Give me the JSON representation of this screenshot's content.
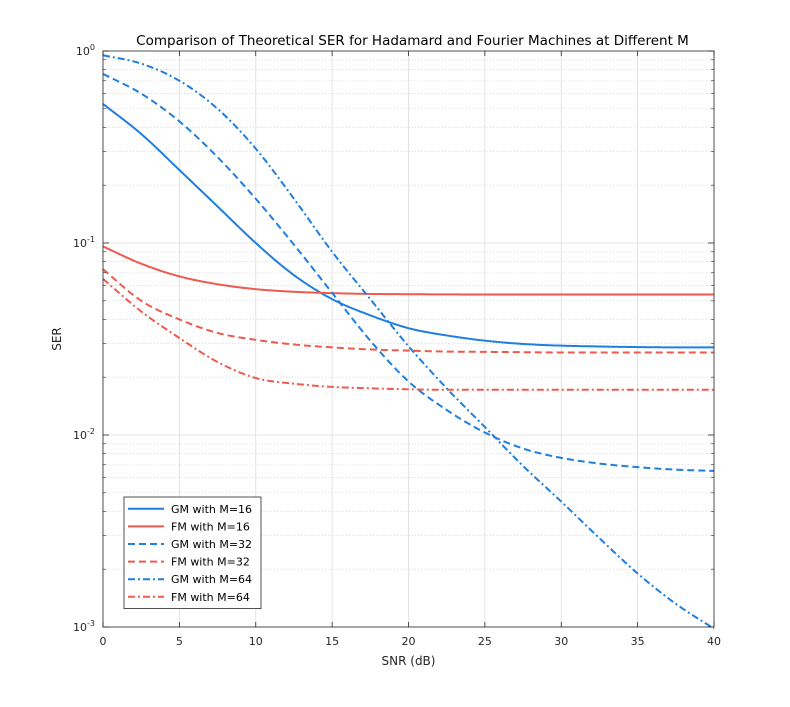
{
  "chart_data": {
    "type": "line",
    "title": "Comparison of Theoretical SER for Hadamard and Fourier Machines at Different M",
    "xlabel": "SNR (dB)",
    "ylabel": "SER",
    "xlim": [
      0,
      40
    ],
    "ylim": [
      0.001,
      1
    ],
    "y_scale": "log",
    "x_ticks": [
      0,
      5,
      10,
      15,
      20,
      25,
      30,
      35,
      40
    ],
    "y_ticks": [
      {
        "value": 0.001,
        "base": "10",
        "exp": "-3"
      },
      {
        "value": 0.01,
        "base": "10",
        "exp": "-2"
      },
      {
        "value": 0.1,
        "base": "10",
        "exp": "-1"
      },
      {
        "value": 1,
        "base": "10",
        "exp": "0"
      }
    ],
    "grid": true,
    "legend_position": "bottom-left",
    "colors": {
      "gm": "#1f7fe0",
      "fm": "#ee5a4e"
    },
    "series": [
      {
        "name": "GM with M=16",
        "color": "#1f7fe0",
        "dash": "solid",
        "x": [
          0,
          2.5,
          5,
          7.5,
          10,
          12.5,
          15,
          17.5,
          20,
          22.5,
          25,
          27.5,
          30,
          32.5,
          35,
          37.5,
          40
        ],
        "y": [
          0.53,
          0.37,
          0.24,
          0.155,
          0.1,
          0.068,
          0.051,
          0.042,
          0.036,
          0.033,
          0.031,
          0.0298,
          0.0292,
          0.0289,
          0.0287,
          0.0286,
          0.0286
        ]
      },
      {
        "name": "FM with M=16",
        "color": "#ee5a4e",
        "dash": "solid",
        "x": [
          0,
          2.5,
          5,
          7.5,
          10,
          12.5,
          15,
          17.5,
          20,
          22.5,
          25,
          27.5,
          30,
          32.5,
          35,
          37.5,
          40
        ],
        "y": [
          0.096,
          0.078,
          0.067,
          0.061,
          0.0575,
          0.0557,
          0.0548,
          0.0543,
          0.0541,
          0.054,
          0.0539,
          0.0539,
          0.0539,
          0.0539,
          0.0539,
          0.0539,
          0.0539
        ]
      },
      {
        "name": "GM with M=32",
        "color": "#1f7fe0",
        "dash": "dash",
        "x": [
          0,
          2.5,
          5,
          7.5,
          10,
          12.5,
          15,
          17.5,
          20,
          22.5,
          25,
          27.5,
          30,
          32.5,
          35,
          37.5,
          40
        ],
        "y": [
          0.76,
          0.6,
          0.43,
          0.28,
          0.17,
          0.098,
          0.055,
          0.031,
          0.019,
          0.0135,
          0.0103,
          0.0085,
          0.0076,
          0.0071,
          0.0068,
          0.0066,
          0.0065
        ]
      },
      {
        "name": "FM with M=32",
        "color": "#ee5a4e",
        "dash": "dash",
        "x": [
          0,
          2.5,
          5,
          7.5,
          10,
          12.5,
          15,
          17.5,
          20,
          22.5,
          25,
          27.5,
          30,
          32.5,
          35,
          37.5,
          40
        ],
        "y": [
          0.073,
          0.05,
          0.04,
          0.034,
          0.0313,
          0.0296,
          0.0286,
          0.0279,
          0.0275,
          0.0272,
          0.0271,
          0.027,
          0.0269,
          0.0269,
          0.0269,
          0.0269,
          0.0269
        ]
      },
      {
        "name": "GM with M=64",
        "color": "#1f7fe0",
        "dash": "dashdot",
        "x": [
          0,
          2.5,
          5,
          7.5,
          10,
          12.5,
          15,
          17.5,
          20,
          22.5,
          25,
          27.5,
          30,
          32.5,
          35,
          37.5,
          40
        ],
        "y": [
          0.95,
          0.86,
          0.7,
          0.5,
          0.31,
          0.17,
          0.09,
          0.051,
          0.029,
          0.0175,
          0.011,
          0.0069,
          0.0045,
          0.0029,
          0.0019,
          0.00132,
          0.00098
        ]
      },
      {
        "name": "FM with M=64",
        "color": "#ee5a4e",
        "dash": "dashdot",
        "x": [
          0,
          2.5,
          5,
          7.5,
          10,
          12.5,
          15,
          17.5,
          20,
          22.5,
          25,
          27.5,
          30,
          32.5,
          35,
          37.5,
          40
        ],
        "y": [
          0.065,
          0.044,
          0.032,
          0.024,
          0.0198,
          0.0185,
          0.0178,
          0.0175,
          0.0173,
          0.0172,
          0.0172,
          0.0172,
          0.0172,
          0.0172,
          0.0172,
          0.0172,
          0.0172
        ]
      }
    ]
  }
}
